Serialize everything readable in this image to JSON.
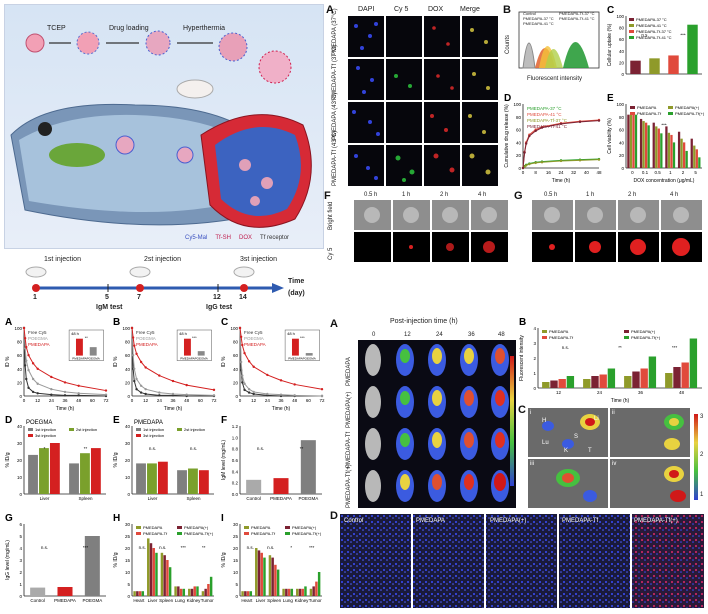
{
  "schematic": {
    "steps": [
      "TCEP",
      "Drug loading",
      "Hyperthermia"
    ],
    "legend": [
      "Cy5-Mal",
      "Tf-SH",
      "DOX",
      "Tf receptor"
    ]
  },
  "micro": {
    "panel": "A",
    "col_headers": [
      "DAPI",
      "Cy 5",
      "DOX",
      "Merge"
    ],
    "row_labels": [
      "PMEDAPA (37°C)",
      "PMEDAPA-Tf (37°C)",
      "PMEDAPA (43°C)",
      "PMEDAPA-Tf (43°C)"
    ]
  },
  "panelB_flow": {
    "panel": "B",
    "xlabel": "Fluorescent intensity",
    "ylabel": "Counts",
    "legend": [
      "Control",
      "PMEDAPA-37 °C",
      "PMEDAPA-41 °C",
      "PMEDAPA-Tf-37 °C",
      "PMEDAPA-Tf-41 °C"
    ]
  },
  "timeline": {
    "title_time": "Time",
    "unit": "(day)",
    "injections": [
      "1st injection",
      "2st injection",
      "3st injection"
    ],
    "days": [
      "1",
      "5",
      "7",
      "12",
      "14"
    ],
    "tests": [
      "IgM test",
      "IgG test"
    ]
  },
  "confocal": {
    "F": "F",
    "G": "G",
    "times": [
      "0.5 h",
      "1 h",
      "2 h",
      "4 h"
    ],
    "rows": [
      "Bright field",
      "Cy 5"
    ]
  },
  "invivo": {
    "panel": "A",
    "header": "Post-injection time (h)",
    "times": [
      "0",
      "12",
      "24",
      "36",
      "48"
    ],
    "rows": [
      "PMEDAPA",
      "PMEDAPA(+)",
      "PMEDAPA-Tf",
      "PMEDAPA-Tf(+)"
    ]
  },
  "organs": {
    "panel": "C",
    "quads": [
      "i",
      "ii",
      "iii",
      "iv"
    ],
    "labels": [
      "H",
      "Li",
      "S",
      "Lu",
      "K",
      "T"
    ],
    "unit": "×10⁹ p/s/cm²/sr",
    "scale": [
      "3",
      "2",
      "1"
    ]
  },
  "tissue": {
    "panel": "D",
    "labels": [
      "Control",
      "PMEDAPA",
      "PMEDAPA(+)",
      "PMEDAPA-Tf",
      "PMEDAPA-Tf(+)"
    ]
  },
  "chart_data": [
    {
      "id": "panelC_uptake",
      "panel": "C",
      "type": "bar",
      "ylabel": "Cellular uptake (%)",
      "ylim": [
        0,
        100
      ],
      "yticks": [
        "0",
        "20",
        "40",
        "60",
        "80",
        "100"
      ],
      "legend": [
        "PMEDAPA-37 °C",
        "PMEDAPA-41 °C",
        "PMEDAPA-Tf-37 °C",
        "PMEDAPA-Tf-41 °C"
      ],
      "colors": [
        "#7b2233",
        "#8f9a2a",
        "#e04a3c",
        "#2aa02c"
      ],
      "values": [
        23,
        27,
        32,
        85
      ],
      "annotations": [
        "n.s.",
        "***"
      ]
    },
    {
      "id": "panelD_release",
      "panel": "D",
      "type": "line",
      "xlabel": "Time (h)",
      "ylabel": "Cumulative drug release (%)",
      "xticks": [
        "0",
        "8",
        "16",
        "24",
        "32",
        "40",
        "48"
      ],
      "yticks": [
        "0",
        "20",
        "40",
        "60",
        "80",
        "100"
      ],
      "xlim": [
        0,
        48
      ],
      "ylim": [
        0,
        100
      ],
      "x": [
        0,
        1,
        2,
        4,
        8,
        12,
        24,
        36,
        48
      ],
      "series": [
        {
          "name": "PMEDAPA-37 °C",
          "color": "#2aa02c",
          "values": [
            0,
            3,
            5,
            7,
            9,
            10,
            12,
            13,
            14
          ]
        },
        {
          "name": "PMEDAPA-41 °C",
          "color": "#e04a3c",
          "values": [
            0,
            25,
            40,
            52,
            60,
            64,
            70,
            73,
            75
          ]
        },
        {
          "name": "PMEDAPA-Tf-37 °C",
          "color": "#8f9a2a",
          "values": [
            0,
            2,
            4,
            6,
            8,
            9,
            11,
            12,
            13
          ]
        },
        {
          "name": "PMEDAPA-Tf-41 °C",
          "color": "#7b2233",
          "values": [
            0,
            24,
            38,
            50,
            58,
            63,
            69,
            72,
            74
          ]
        }
      ]
    },
    {
      "id": "panelE_viability",
      "panel": "E",
      "type": "bar",
      "xlabel": "DOX concentration (μg/mL)",
      "ylabel": "Cell viability (%)",
      "categories": [
        "0",
        "0.1",
        "0.5",
        "1",
        "2",
        "5"
      ],
      "yticks": [
        "0",
        "20",
        "40",
        "60",
        "80",
        "100"
      ],
      "ylim": [
        0,
        120
      ],
      "legend": [
        "PMEDAPA",
        "PMEDAPA(+)",
        "PMEDAPA-Tf",
        "PMEDAPA-Tf(+)"
      ],
      "colors": [
        "#7b2233",
        "#8f9a2a",
        "#e04a3c",
        "#2aa02c"
      ],
      "series": [
        {
          "name": "PMEDAPA",
          "values": [
            100,
            92,
            85,
            78,
            68,
            55
          ]
        },
        {
          "name": "PMEDAPA(+)",
          "values": [
            100,
            88,
            78,
            66,
            55,
            42
          ]
        },
        {
          "name": "PMEDAPA-Tf",
          "values": [
            100,
            85,
            74,
            62,
            48,
            35
          ]
        },
        {
          "name": "PMEDAPA-Tf(+)",
          "values": [
            100,
            80,
            65,
            48,
            32,
            20
          ]
        }
      ],
      "annotations": [
        "***"
      ]
    },
    {
      "id": "pk_A",
      "panel": "A",
      "type": "line",
      "xlabel": "Time (h)",
      "ylabel": "ID %",
      "xlim": [
        0,
        72
      ],
      "ylim": [
        0,
        100
      ],
      "xticks": [
        "0",
        "12",
        "24",
        "36",
        "48",
        "60",
        "72"
      ],
      "yticks": [
        "0",
        "20",
        "40",
        "60",
        "80",
        "100"
      ],
      "x": [
        0,
        1,
        2,
        4,
        8,
        12,
        24,
        36,
        48,
        72
      ],
      "series": [
        {
          "name": "Free Cy5",
          "color": "#333333",
          "values": [
            100,
            45,
            25,
            12,
            6,
            4,
            2,
            1,
            1,
            0
          ]
        },
        {
          "name": "POEGMA",
          "color": "#999999",
          "values": [
            100,
            70,
            52,
            38,
            25,
            18,
            10,
            6,
            4,
            2
          ]
        },
        {
          "name": "PMEDAPA",
          "color": "#d42020",
          "values": [
            100,
            85,
            72,
            60,
            48,
            40,
            28,
            20,
            15,
            8
          ]
        }
      ],
      "inset": {
        "title": "48 h",
        "categories": [
          "PMEDAPA",
          "POEGMA"
        ],
        "values": [
          18,
          9
        ],
        "annotation": "**"
      }
    },
    {
      "id": "pk_B",
      "panel": "B",
      "type": "line",
      "xlabel": "Time (h)",
      "ylabel": "ID %",
      "xlim": [
        0,
        72
      ],
      "ylim": [
        0,
        100
      ],
      "xticks": [
        "0",
        "12",
        "24",
        "36",
        "48",
        "60",
        "72"
      ],
      "yticks": [
        "0",
        "20",
        "40",
        "60",
        "80",
        "100"
      ],
      "x": [
        0,
        1,
        2,
        4,
        8,
        12,
        24,
        36,
        48,
        72
      ],
      "series": [
        {
          "name": "Free Cy5",
          "color": "#333333",
          "values": [
            100,
            40,
            22,
            10,
            5,
            3,
            1,
            1,
            0,
            0
          ]
        },
        {
          "name": "POEGMA",
          "color": "#999999",
          "values": [
            100,
            60,
            40,
            25,
            15,
            10,
            5,
            3,
            2,
            1
          ]
        },
        {
          "name": "PMEDAPA",
          "color": "#d42020",
          "values": [
            100,
            86,
            74,
            62,
            50,
            42,
            30,
            22,
            16,
            9
          ]
        }
      ],
      "inset": {
        "title": "48 h",
        "categories": [
          "PMEDAPA",
          "POEGMA"
        ],
        "values": [
          19,
          5
        ],
        "annotation": "***"
      }
    },
    {
      "id": "pk_C",
      "panel": "C",
      "type": "line",
      "xlabel": "Time (h)",
      "ylabel": "ID %",
      "xlim": [
        0,
        72
      ],
      "ylim": [
        0,
        100
      ],
      "xticks": [
        "0",
        "12",
        "24",
        "36",
        "48",
        "60",
        "72"
      ],
      "yticks": [
        "0",
        "20",
        "40",
        "60",
        "80",
        "100"
      ],
      "x": [
        0,
        1,
        2,
        4,
        8,
        12,
        24,
        36,
        48,
        72
      ],
      "series": [
        {
          "name": "Free Cy5",
          "color": "#333333",
          "values": [
            100,
            38,
            20,
            9,
            5,
            3,
            1,
            0,
            0,
            0
          ]
        },
        {
          "name": "POEGMA",
          "color": "#999999",
          "values": [
            100,
            50,
            30,
            18,
            10,
            6,
            3,
            2,
            1,
            0
          ]
        },
        {
          "name": "PMEDAPA",
          "color": "#d42020",
          "values": [
            100,
            87,
            75,
            63,
            51,
            43,
            31,
            23,
            17,
            10
          ]
        }
      ],
      "inset": {
        "title": "48 h",
        "categories": [
          "PMEDAPA",
          "POEGMA"
        ],
        "values": [
          20,
          3
        ],
        "annotation": "***"
      }
    },
    {
      "id": "biod_D",
      "panel": "D",
      "type": "bar",
      "title": "POEGMA",
      "ylabel": "% ID/g",
      "categories": [
        "Liver",
        "Spleen"
      ],
      "ylim": [
        0,
        40
      ],
      "yticks": [
        "0",
        "10",
        "20",
        "30",
        "40"
      ],
      "legend": [
        "1st injection",
        "2st injection",
        "3st injection"
      ],
      "colors": [
        "#7f7f7f",
        "#7aa02c",
        "#d42020"
      ],
      "series": [
        {
          "name": "1st injection",
          "values": [
            23,
            18
          ]
        },
        {
          "name": "2st injection",
          "values": [
            27,
            24
          ]
        },
        {
          "name": "3st injection",
          "values": [
            30,
            27
          ]
        }
      ],
      "annotations": [
        "*",
        "**"
      ]
    },
    {
      "id": "biod_E",
      "panel": "E",
      "type": "bar",
      "title": "PMEDAPA",
      "ylabel": "% ID/g",
      "categories": [
        "Liver",
        "Spleen"
      ],
      "ylim": [
        0,
        40
      ],
      "yticks": [
        "0",
        "10",
        "20",
        "30",
        "40"
      ],
      "legend": [
        "1st injection",
        "2st injection",
        "3st injection"
      ],
      "colors": [
        "#7f7f7f",
        "#7aa02c",
        "#d42020"
      ],
      "series": [
        {
          "name": "1st injection",
          "values": [
            18,
            14
          ]
        },
        {
          "name": "2st injection",
          "values": [
            18,
            15
          ]
        },
        {
          "name": "3st injection",
          "values": [
            19,
            14
          ]
        }
      ],
      "annotations": [
        "n.s.",
        "n.s."
      ]
    },
    {
      "id": "igm_F",
      "panel": "F",
      "type": "bar",
      "ylabel": "IgM level (mg/mL)",
      "categories": [
        "Control",
        "PMEDAPA",
        "POEGMA"
      ],
      "ylim": [
        0,
        1.2
      ],
      "yticks": [
        "0.0",
        "0.2",
        "0.4",
        "0.6",
        "0.8",
        "1.0",
        "1.2"
      ],
      "colors": [
        "#aaaaaa",
        "#d42020",
        "#7f7f7f"
      ],
      "values": [
        0.25,
        0.28,
        0.95
      ],
      "annotations": [
        "n.s.",
        "**"
      ]
    },
    {
      "id": "igg_G",
      "panel": "G",
      "type": "bar",
      "ylabel": "IgG level (mg/mL)",
      "categories": [
        "Control",
        "PMEDAPA",
        "POEGMA"
      ],
      "ylim": [
        0,
        6
      ],
      "yticks": [
        "0",
        "1",
        "2",
        "3",
        "4",
        "5",
        "6"
      ],
      "colors": [
        "#aaaaaa",
        "#d42020",
        "#7f7f7f"
      ],
      "values": [
        0.7,
        0.75,
        5.0
      ],
      "annotations": [
        "n.s.",
        "***"
      ]
    },
    {
      "id": "biod_H",
      "panel": "H",
      "type": "bar",
      "ylabel": "% ID/g",
      "categories": [
        "Heart",
        "Liver",
        "Spleen",
        "Lung",
        "Kidney",
        "Tumor"
      ],
      "ylim": [
        0,
        30
      ],
      "yticks": [
        "0",
        "5",
        "10",
        "15",
        "20",
        "25",
        "30"
      ],
      "legend": [
        "PMEDAPA",
        "PMEDAPA(+)",
        "PMEDAPA-Tf",
        "PMEDAPA-Tf(+)"
      ],
      "colors": [
        "#8f9a2a",
        "#7b2233",
        "#e04a3c",
        "#2aa02c"
      ],
      "series": [
        {
          "name": "PMEDAPA",
          "values": [
            2,
            24,
            18,
            4,
            3,
            2
          ]
        },
        {
          "name": "PMEDAPA(+)",
          "values": [
            2,
            22,
            17,
            4,
            3,
            3
          ]
        },
        {
          "name": "PMEDAPA-Tf",
          "values": [
            2,
            20,
            15,
            3,
            4,
            5
          ]
        },
        {
          "name": "PMEDAPA-Tf(+)",
          "values": [
            2,
            18,
            12,
            3,
            4,
            8
          ]
        }
      ],
      "annotations": [
        "n.s.",
        "n.s.",
        "***",
        "**"
      ]
    },
    {
      "id": "biod_I",
      "panel": "I",
      "type": "bar",
      "ylabel": "% ID/g",
      "categories": [
        "Heart",
        "Liver",
        "Spleen",
        "Lung",
        "Kidney",
        "Tumor"
      ],
      "ylim": [
        0,
        30
      ],
      "yticks": [
        "0",
        "5",
        "10",
        "15",
        "20",
        "25",
        "30"
      ],
      "legend": [
        "PMEDAPA",
        "PMEDAPA(+)",
        "PMEDAPA-Tf",
        "PMEDAPA-Tf(+)"
      ],
      "colors": [
        "#8f9a2a",
        "#7b2233",
        "#e04a3c",
        "#2aa02c"
      ],
      "series": [
        {
          "name": "PMEDAPA",
          "values": [
            2,
            20,
            17,
            3,
            3,
            3
          ]
        },
        {
          "name": "PMEDAPA(+)",
          "values": [
            2,
            19,
            16,
            3,
            3,
            4
          ]
        },
        {
          "name": "PMEDAPA-Tf",
          "values": [
            2,
            18,
            13,
            3,
            3,
            6
          ]
        },
        {
          "name": "PMEDAPA-Tf(+)",
          "values": [
            2,
            16,
            11,
            3,
            4,
            10
          ]
        }
      ],
      "annotations": [
        "n.s.",
        "n.s.",
        "*",
        "***"
      ]
    },
    {
      "id": "fluor_B",
      "panel": "B",
      "type": "bar",
      "ylabel": "Fluorescent intensity",
      "xlabel": "Time (h)",
      "categories": [
        "12",
        "24",
        "36",
        "48"
      ],
      "ylim": [
        0,
        4
      ],
      "yticks": [
        "0",
        "1",
        "2",
        "3",
        "4"
      ],
      "legend": [
        "PMEDAPA",
        "PMEDAPA(+)",
        "PMEDAPA-Tf",
        "PMEDAPA-Tf(+)"
      ],
      "colors": [
        "#8f9a2a",
        "#7b2233",
        "#e04a3c",
        "#2aa02c"
      ],
      "series": [
        {
          "name": "PMEDAPA",
          "values": [
            0.4,
            0.6,
            0.8,
            1.0
          ]
        },
        {
          "name": "PMEDAPA(+)",
          "values": [
            0.5,
            0.8,
            1.1,
            1.4
          ]
        },
        {
          "name": "PMEDAPA-Tf",
          "values": [
            0.6,
            0.9,
            1.3,
            1.7
          ]
        },
        {
          "name": "PMEDAPA-Tf(+)",
          "values": [
            0.8,
            1.3,
            2.1,
            3.3
          ]
        }
      ],
      "annotations": [
        "n.s.",
        "**",
        "***"
      ]
    }
  ]
}
